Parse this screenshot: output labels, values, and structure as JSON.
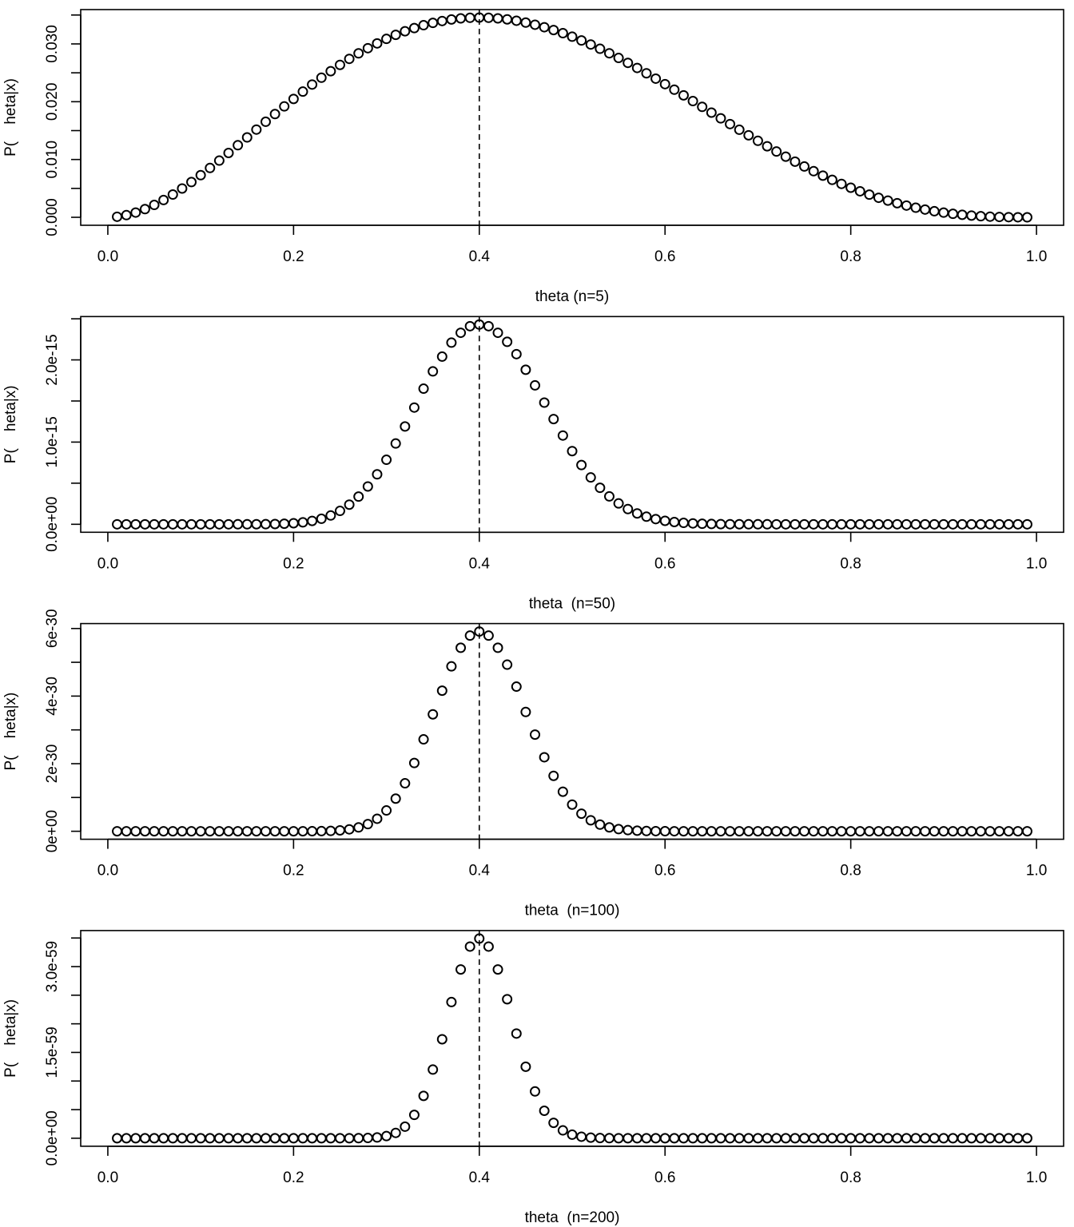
{
  "chart_data": [
    {
      "type": "scatter",
      "xlabel": "theta (n=5)",
      "ylabel": "P(    heta|x)",
      "color": "#000000",
      "vline": 0.4,
      "xlim": [
        -0.0292,
        1.0292
      ],
      "xticks": [
        {
          "value": 0,
          "label": "0.0"
        },
        0.2,
        0.4,
        0.6,
        0.8,
        {
          "value": 1,
          "label": "1.0"
        }
      ],
      "ylim": [
        -0.00138,
        0.03594
      ],
      "yticks": [
        {
          "value": 0,
          "label": "0.000"
        },
        {
          "value": 0.005,
          "label": null
        },
        {
          "value": 0.01,
          "label": "0.010"
        },
        {
          "value": 0.015,
          "label": null
        },
        {
          "value": 0.02,
          "label": "0.020"
        },
        {
          "value": 0.025,
          "label": null
        },
        {
          "value": 0.03,
          "label": "0.030"
        },
        {
          "value": 0.035,
          "label": null
        }
      ],
      "x": [
        0.01,
        0.02,
        0.03,
        0.04,
        0.05,
        0.06,
        0.07,
        0.08,
        0.09,
        0.1,
        0.11,
        0.12,
        0.13,
        0.14,
        0.15,
        0.16,
        0.17,
        0.18,
        0.19,
        0.2,
        0.21,
        0.22,
        0.23,
        0.24,
        0.25,
        0.26,
        0.27,
        0.28,
        0.29,
        0.3,
        0.31,
        0.32,
        0.33,
        0.34,
        0.35,
        0.36,
        0.37,
        0.38,
        0.39,
        0.4,
        0.41,
        0.42,
        0.43,
        0.44,
        0.45,
        0.46,
        0.47,
        0.48,
        0.49,
        0.5,
        0.51,
        0.52,
        0.53,
        0.54,
        0.55,
        0.56,
        0.57,
        0.58,
        0.59,
        0.6,
        0.61,
        0.62,
        0.63,
        0.64,
        0.65,
        0.66,
        0.67,
        0.68,
        0.69,
        0.7,
        0.71,
        0.72,
        0.73,
        0.74,
        0.75,
        0.76,
        0.77,
        0.78,
        0.79,
        0.8,
        0.81,
        0.82,
        0.83,
        0.84,
        0.85,
        0.86,
        0.87,
        0.88,
        0.89,
        0.9,
        0.91,
        0.92,
        0.93,
        0.94,
        0.95,
        0.96,
        0.97,
        0.98,
        0.99
      ],
      "values": [
        9.7e-05,
        0.000377,
        0.000822,
        0.001416,
        0.002143,
        0.00299,
        0.00394,
        0.00498,
        0.0061,
        0.00729,
        0.00853,
        0.00981,
        0.01113,
        0.01247,
        0.01382,
        0.01518,
        0.01653,
        0.01786,
        0.01919,
        0.02048,
        0.02175,
        0.02297,
        0.02415,
        0.02528,
        0.02637,
        0.02741,
        0.02837,
        0.02926,
        0.03009,
        0.03087,
        0.03157,
        0.03219,
        0.03274,
        0.03324,
        0.03364,
        0.03396,
        0.03423,
        0.03442,
        0.03452,
        0.03456,
        0.03452,
        0.03442,
        0.03425,
        0.03401,
        0.03369,
        0.03332,
        0.03289,
        0.0324,
        0.03186,
        0.03125,
        0.0306,
        0.0299,
        0.02916,
        0.02838,
        0.02757,
        0.02672,
        0.02584,
        0.02492,
        0.02399,
        0.02304,
        0.02208,
        0.0211,
        0.02011,
        0.01911,
        0.01811,
        0.01712,
        0.01613,
        0.01515,
        0.01419,
        0.01323,
        0.01229,
        0.01138,
        0.01049,
        0.00963,
        0.00879,
        0.00798,
        0.00721,
        0.00648,
        0.00578,
        0.00512,
        0.0045,
        0.00392,
        0.00338,
        0.00289,
        0.00244,
        0.00203,
        0.00166,
        0.00134,
        0.00105,
        0.00081,
        0.000603,
        0.000434,
        0.000297,
        0.000191,
        0.000113,
        5.9e-05,
        2.54e-05,
        7.7e-06,
        9.8e-07
      ]
    },
    {
      "type": "scatter",
      "xlabel": "theta  (n=50)",
      "ylabel": "P(    heta|x)",
      "color": "#000000",
      "vline": 0.4,
      "xlim": [
        -0.0292,
        1.0292
      ],
      "xticks": [
        {
          "value": 0,
          "label": "0.0"
        },
        0.2,
        0.4,
        0.6,
        0.8,
        {
          "value": 1,
          "label": "1.0"
        }
      ],
      "ylim": [
        -9.7e-17,
        2.527e-15
      ],
      "yticks": [
        {
          "value": 0,
          "label": "0.0e+00"
        },
        {
          "value": 5e-16,
          "label": null
        },
        {
          "value": 1e-15,
          "label": "1.0e-15"
        },
        {
          "value": 1.5e-15,
          "label": null
        },
        {
          "value": 2e-15,
          "label": "2.0e-15"
        },
        {
          "value": 2.5e-15,
          "label": null
        }
      ],
      "x": [
        0.01,
        0.02,
        0.03,
        0.04,
        0.05,
        0.06,
        0.07,
        0.08,
        0.09,
        0.1,
        0.11,
        0.12,
        0.13,
        0.14,
        0.15,
        0.16,
        0.17,
        0.18,
        0.19,
        0.2,
        0.21,
        0.22,
        0.23,
        0.24,
        0.25,
        0.26,
        0.27,
        0.28,
        0.29,
        0.3,
        0.31,
        0.32,
        0.33,
        0.34,
        0.35,
        0.36,
        0.37,
        0.38,
        0.39,
        0.4,
        0.41,
        0.42,
        0.43,
        0.44,
        0.45,
        0.46,
        0.47,
        0.48,
        0.49,
        0.5,
        0.51,
        0.52,
        0.53,
        0.54,
        0.55,
        0.56,
        0.57,
        0.58,
        0.59,
        0.6,
        0.61,
        0.62,
        0.63,
        0.64,
        0.65,
        0.66,
        0.67,
        0.68,
        0.69,
        0.7,
        0.71,
        0.72,
        0.73,
        0.74,
        0.75,
        0.76,
        0.77,
        0.78,
        0.79,
        0.8,
        0.81,
        0.82,
        0.83,
        0.84,
        0.85,
        0.86,
        0.87,
        0.88,
        0.89,
        0.9,
        0.91,
        0.92,
        0.93,
        0.94,
        0.95,
        0.96,
        0.97,
        0.98,
        0.99
      ],
      "values": [
        7.4e-41,
        5.7e-35,
        1.4e-31,
        3.2e-29,
        2e-27,
        5.7e-26,
        9e-25,
        9.5e-24,
        7.2e-23,
        4.2e-22,
        2e-21,
        8.3e-21,
        2.9e-20,
        9.1e-20,
        2.5e-19,
        6.5e-19,
        1.52e-18,
        3.3e-18,
        6.8e-18,
        1.3e-17,
        2.37e-17,
        4.09e-17,
        6.74e-17,
        1.07e-16,
        1.63e-16,
        2.39e-16,
        3.37e-16,
        4.6e-16,
        6.08e-16,
        7.85e-16,
        9.83e-16,
        1.19e-15,
        1.42e-15,
        1.65e-15,
        1.86e-15,
        2.04e-15,
        2.21e-15,
        2.33e-15,
        2.41e-15,
        2.43e-15,
        2.41e-15,
        2.33e-15,
        2.22e-15,
        2.07e-15,
        1.88e-15,
        1.69e-15,
        1.48e-15,
        1.28e-15,
        1.08e-15,
        8.9e-16,
        7.21e-16,
        5.7e-16,
        4.44e-16,
        3.39e-16,
        2.54e-16,
        1.85e-16,
        1.32e-16,
        9.24e-17,
        6.32e-17,
        4.21e-17,
        2.75e-17,
        1.75e-17,
        1.08e-17,
        6.5e-18,
        3.8e-18,
        2.2e-18,
        1.2e-18,
        6.4e-19,
        3.3e-19,
        1.6e-19,
        7.9e-20,
        3.6e-20,
        1.6e-20,
        6.8e-21,
        2.7e-21,
        1e-21,
        3.8e-22,
        1.3e-22,
        4.2e-23,
        1.2e-23,
        3.4e-24,
        8.6e-25,
        2e-25,
        4e-26,
        7.4e-27,
        1.2e-27,
        1.6e-28,
        1.8e-29,
        1.7e-30,
        1.2e-31,
        6.5e-33,
        2.3e-34,
        5.3e-36,
        6.4e-38,
        3.3e-40,
        5.1e-43,
        1.1e-46,
        7.2e-52,
        8.2e-61
      ]
    },
    {
      "type": "scatter",
      "xlabel": "theta  (n=100)",
      "ylabel": "P(    heta|x)",
      "color": "#000000",
      "vline": 0.4,
      "xlim": [
        -0.0292,
        1.0292
      ],
      "xticks": [
        {
          "value": 0,
          "label": "0.0"
        },
        0.2,
        0.4,
        0.6,
        0.8,
        {
          "value": 1,
          "label": "1.0"
        }
      ],
      "ylim": [
        -2.36e-31,
        6.146e-30
      ],
      "yticks": [
        {
          "value": 0,
          "label": "0e+00"
        },
        {
          "value": 1e-30,
          "label": null
        },
        {
          "value": 2e-30,
          "label": "2e-30"
        },
        {
          "value": 3e-30,
          "label": null
        },
        {
          "value": 4e-30,
          "label": "4e-30"
        },
        {
          "value": 5e-30,
          "label": null
        },
        {
          "value": 6e-30,
          "label": "6e-30"
        }
      ],
      "x": [
        0.01,
        0.02,
        0.03,
        0.04,
        0.05,
        0.06,
        0.07,
        0.08,
        0.09,
        0.1,
        0.11,
        0.12,
        0.13,
        0.14,
        0.15,
        0.16,
        0.17,
        0.18,
        0.19,
        0.2,
        0.21,
        0.22,
        0.23,
        0.24,
        0.25,
        0.26,
        0.27,
        0.28,
        0.29,
        0.3,
        0.31,
        0.32,
        0.33,
        0.34,
        0.35,
        0.36,
        0.37,
        0.38,
        0.39,
        0.4,
        0.41,
        0.42,
        0.43,
        0.44,
        0.45,
        0.46,
        0.47,
        0.48,
        0.49,
        0.5,
        0.51,
        0.52,
        0.53,
        0.54,
        0.55,
        0.56,
        0.57,
        0.58,
        0.59,
        0.6,
        0.61,
        0.62,
        0.63,
        0.64,
        0.65,
        0.66,
        0.67,
        0.68,
        0.69,
        0.7,
        0.71,
        0.72,
        0.73,
        0.74,
        0.75,
        0.76,
        0.77,
        0.78,
        0.79,
        0.8,
        0.81,
        0.82,
        0.83,
        0.84,
        0.85,
        0.86,
        0.87,
        0.88,
        0.89,
        0.9,
        0.91,
        0.92,
        0.93,
        0.94,
        0.95,
        0.96,
        0.97,
        0.98,
        0.99
      ],
      "values": [
        5.4e-81,
        3.3e-69,
        2e-62,
        1e-57,
        4.2e-54,
        3.3e-51,
        8.1e-49,
        9e-47,
        5.1e-45,
        1.8e-43,
        4.2e-42,
        6.9e-41,
        8.4e-40,
        8.2e-39,
        6.5e-38,
        4.2e-37,
        2.3e-36,
        1.09e-35,
        4.57e-35,
        1.69e-34,
        5.6e-34,
        1.67e-33,
        4.5e-33,
        1.14e-32,
        2.66e-32,
        5.7e-32,
        1.14e-31,
        2.12e-31,
        3.7e-31,
        6.16e-31,
        9.66e-31,
        1.42e-30,
        2.02e-30,
        2.72e-30,
        3.46e-30,
        4.16e-30,
        4.88e-30,
        5.43e-30,
        5.79e-30,
        5.91e-30,
        5.79e-30,
        5.43e-30,
        4.93e-30,
        4.28e-30,
        3.53e-30,
        2.86e-30,
        2.19e-30,
        1.64e-30,
        1.17e-30,
        7.89e-31,
        5.2e-31,
        3.25e-31,
        1.97e-31,
        1.15e-31,
        6.45e-32,
        3.42e-32,
        1.74e-32,
        8.5e-33,
        4e-33,
        1.77e-33,
        7.6e-34,
        3.1e-34,
        1.17e-34,
        4.2e-35,
        1.4e-35,
        4.7e-36,
        1.4e-36,
        4e-37,
        1.1e-37,
        2.7e-38,
        6.2e-39,
        1.3e-39,
        2.6e-40,
        4.7e-41,
        7.5e-42,
        1.1e-42,
        1.4e-43,
        1.7e-44,
        1.7e-45,
        1.5e-46,
        1.2e-47,
        7.3e-49,
        3.9e-50,
        1.6e-51,
        5.5e-53,
        1.4e-54,
        2.6e-56,
        3.4e-58,
        2.9e-60,
        1.5e-62,
        4.2e-65,
        5.4e-68,
        2.8e-71,
        4.1e-75,
        1.1e-79,
        2.6e-85,
        1.2e-92,
        5.1e-103,
        6.7e-121
      ]
    },
    {
      "type": "scatter",
      "xlabel": "theta  (n=200)",
      "ylabel": "P(    heta|x)",
      "color": "#000000",
      "vline": 0.4,
      "xlim": [
        -0.0292,
        1.0292
      ],
      "xticks": [
        {
          "value": 0,
          "label": "0.0"
        },
        0.2,
        0.4,
        0.6,
        0.8,
        {
          "value": 1,
          "label": "1.0"
        }
      ],
      "ylim": [
        -1.4e-60,
        3.63e-59
      ],
      "yticks": [
        {
          "value": 0,
          "label": "0.0e+00"
        },
        {
          "value": 5e-60,
          "label": null
        },
        {
          "value": 1e-59,
          "label": null
        },
        {
          "value": 1.5e-59,
          "label": "1.5e-59"
        },
        {
          "value": 2e-59,
          "label": null
        },
        {
          "value": 2.5e-59,
          "label": null
        },
        {
          "value": 3e-59,
          "label": "3.0e-59"
        },
        {
          "value": 3.5e-59,
          "label": null
        }
      ],
      "x": [
        0.01,
        0.02,
        0.03,
        0.04,
        0.05,
        0.06,
        0.07,
        0.08,
        0.09,
        0.1,
        0.11,
        0.12,
        0.13,
        0.14,
        0.15,
        0.16,
        0.17,
        0.18,
        0.19,
        0.2,
        0.21,
        0.22,
        0.23,
        0.24,
        0.25,
        0.26,
        0.27,
        0.28,
        0.29,
        0.3,
        0.31,
        0.32,
        0.33,
        0.34,
        0.35,
        0.36,
        0.37,
        0.38,
        0.39,
        0.4,
        0.41,
        0.42,
        0.43,
        0.44,
        0.45,
        0.46,
        0.47,
        0.48,
        0.49,
        0.5,
        0.51,
        0.52,
        0.53,
        0.54,
        0.55,
        0.56,
        0.57,
        0.58,
        0.59,
        0.6,
        0.61,
        0.62,
        0.63,
        0.64,
        0.65,
        0.66,
        0.67,
        0.68,
        0.69,
        0.7,
        0.71,
        0.72,
        0.73,
        0.74,
        0.75,
        0.76,
        0.77,
        0.78,
        0.79,
        0.8,
        0.81,
        0.82,
        0.83,
        0.84,
        0.85,
        0.86,
        0.87,
        0.88,
        0.89,
        0.9,
        0.91,
        0.92,
        0.93,
        0.94,
        0.95,
        0.96,
        0.97,
        0.98,
        0.99
      ],
      "values": [
        2.9e-161,
        1.1e-137,
        3.8e-124,
        1.1e-114,
        1.7e-107,
        1.1e-101,
        6.6e-97,
        8e-93,
        2.6e-89,
        3.3e-86,
        1.7e-83,
        4.7e-81,
        7.1e-79,
        6.8e-77,
        4.2e-75,
        1.8e-73,
        5.3e-72,
        1.2e-70,
        2.1e-69,
        2.9e-68,
        3.1e-67,
        2.8e-66,
        2e-65,
        1.3e-64,
        7.1e-64,
        3.2e-63,
        1.3e-62,
        4.5e-62,
        1.37e-61,
        3.79e-61,
        9.33e-61,
        2.02e-60,
        4.08e-60,
        7.4e-60,
        1.2e-59,
        1.73e-59,
        2.38e-59,
        2.95e-59,
        3.35e-59,
        3.49e-59,
        3.35e-59,
        2.95e-59,
        2.43e-59,
        1.83e-59,
        1.25e-59,
        8.18e-60,
        4.8e-60,
        2.69e-60,
        1.37e-60,
        6.23e-61,
        2.7e-61,
        1.06e-61,
        3.9e-62,
        1.3e-62,
        4.2e-63,
        1.2e-63,
        3e-64,
        7.2e-65,
        1.6e-65,
        3.1e-66,
        5.8e-67,
        9.6e-68,
        1.4e-68,
        1.8e-69,
        2e-70,
        2.2e-71,
        2e-72,
        1.6e-73,
        1.2e-74,
        7.2e-76,
        3.9e-77,
        1.8e-78,
        6.7e-80,
        2.2e-81,
        5.6e-83,
        1.2e-84,
        2.1e-86,
        2.9e-88,
        3e-90,
        2.4e-92,
        1.4e-94,
        5.4e-97,
        1.5e-99,
        2.7e-102,
        3e-105,
        2e-108,
        6.9e-112,
        1.1e-115,
        8.2e-120,
        2.1e-124,
        1.7e-129,
        3e-135,
        7.9e-142,
        1.7e-149,
        1.3e-158,
        6.8e-170,
        1.5e-184,
        2.6e-205,
        4.5e-241
      ]
    }
  ]
}
